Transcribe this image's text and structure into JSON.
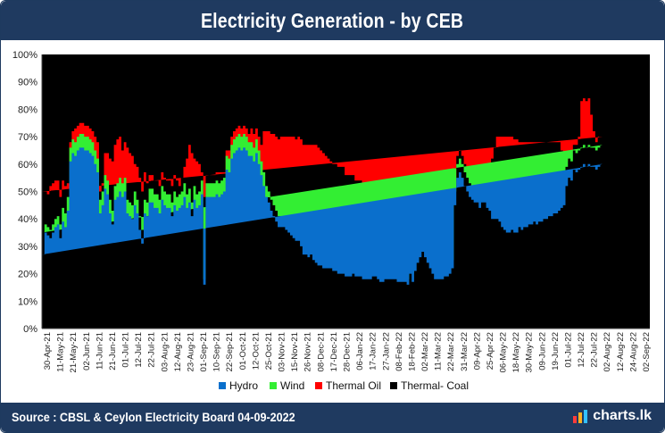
{
  "header": {
    "title": "Electricity Generation - by CEB"
  },
  "footer": {
    "source": "Source : CBSL & Ceylon Electricity Board 04-09-2022",
    "brand": "charts.lk"
  },
  "colors": {
    "hydro": "#0a6fcc",
    "wind": "#33ee33",
    "thermal_oil": "#ff0000",
    "thermal_coal": "#000000",
    "header_bg": "#1f3a60"
  },
  "chart_data": {
    "type": "area",
    "stacked": true,
    "percent": true,
    "ylim": [
      0,
      100
    ],
    "yticks": [
      "0%",
      "10%",
      "20%",
      "30%",
      "40%",
      "50%",
      "60%",
      "70%",
      "80%",
      "90%",
      "100%"
    ],
    "x_tick_labels": [
      "30-Apr-21",
      "11-May-21",
      "21-May-21",
      "02-Jun-21",
      "11-Jun-21",
      "21-Jun-21",
      "01-Jul-21",
      "12-Jul-21",
      "22-Jul-21",
      "03-Aug-21",
      "12-Aug-21",
      "23-Aug-21",
      "01-Sep-21",
      "10-Sep-21",
      "22-Sep-21",
      "01-Oct-21",
      "12-Oct-21",
      "25-Oct-21",
      "03-Nov-21",
      "15-Nov-21",
      "26-Nov-21",
      "08-Dec-21",
      "17-Dec-21",
      "28-Dec-21",
      "06-Jan-22",
      "17-Jan-22",
      "27-Jan-22",
      "08-Feb-22",
      "18-Feb-22",
      "02-Mar-22",
      "11-Mar-22",
      "22-Mar-22",
      "31-Mar-22",
      "09-Apr-22",
      "25-Apr-22",
      "06-May-22",
      "18-May-22",
      "30-May-22",
      "09-Jun-22",
      "19-Jun-22",
      "01-Jul-22",
      "12-Jul-22",
      "22-Jul-22",
      "02-Aug-22",
      "12-Aug-22",
      "24-Aug-22",
      "02-Sep-22"
    ],
    "grid": false,
    "legend": {
      "position": "bottom",
      "entries": [
        "Hydro",
        "Wind",
        "Thermal Oil",
        "Thermal- Coal"
      ]
    },
    "series_names": [
      "Hydro",
      "Wind",
      "Thermal Oil",
      "Thermal- Coal"
    ],
    "x_index": [
      0,
      2,
      4,
      6,
      8,
      10,
      12,
      14,
      16,
      18,
      20,
      22,
      24,
      26,
      28,
      30,
      32,
      34,
      36,
      38,
      40,
      42,
      44,
      46,
      48,
      50,
      52,
      54,
      56,
      58,
      60,
      62,
      64,
      66,
      68,
      70,
      72,
      74,
      76,
      78,
      80,
      82,
      84,
      86,
      88,
      90,
      92,
      94,
      96,
      98,
      100,
      102,
      104,
      106,
      108,
      110,
      112,
      114,
      116,
      118,
      120,
      122,
      124,
      126,
      128,
      130,
      132,
      134,
      136,
      138,
      140,
      142,
      144,
      146,
      148,
      150,
      152,
      154,
      156,
      158,
      160,
      162,
      164,
      166,
      168,
      170,
      172,
      174,
      176,
      178,
      180,
      182,
      184,
      186,
      188,
      190,
      192,
      194,
      196,
      198,
      200,
      202,
      204,
      206,
      208,
      210,
      212,
      214,
      216,
      218,
      220,
      222,
      224,
      226,
      228,
      230,
      232,
      234,
      236,
      238,
      240,
      242,
      244,
      246,
      248,
      250,
      252,
      254,
      256,
      258,
      260,
      262,
      264,
      266,
      268,
      270,
      272,
      274,
      276,
      278,
      280,
      282,
      284,
      286,
      288,
      290,
      292,
      294,
      296,
      298,
      300,
      302,
      304,
      306,
      308,
      310,
      312,
      314,
      316,
      318,
      320,
      322,
      324,
      326,
      328,
      330,
      332,
      334,
      336,
      338,
      340,
      342,
      344,
      346,
      348,
      350,
      352,
      354,
      356,
      358,
      360,
      362,
      364,
      366,
      368,
      370,
      372,
      374,
      376,
      378,
      380,
      382,
      384,
      386,
      388,
      390,
      392,
      394,
      396,
      398,
      400,
      402,
      404,
      406,
      408,
      410,
      412,
      414,
      416,
      418,
      420,
      422,
      424,
      426,
      428,
      430,
      432,
      434,
      436,
      438,
      440,
      442,
      444,
      446,
      448,
      450,
      452,
      454,
      456,
      458,
      460,
      462,
      464,
      466,
      468,
      470,
      472,
      474,
      476,
      478,
      480,
      482,
      484,
      486,
      488,
      490
    ],
    "hydro": [
      27,
      35,
      34,
      33,
      35,
      37,
      38,
      33,
      39,
      37,
      43,
      61,
      64,
      63,
      65,
      66,
      66,
      65,
      65,
      64,
      63,
      60,
      57,
      42,
      45,
      51,
      49,
      42,
      38,
      47,
      48,
      50,
      48,
      50,
      42,
      41,
      40,
      45,
      42,
      36,
      31,
      42,
      41,
      46,
      46,
      44,
      44,
      42,
      47,
      45,
      44,
      44,
      41,
      45,
      43,
      44,
      45,
      48,
      44,
      46,
      41,
      47,
      44,
      45,
      49,
      16,
      48,
      48,
      48,
      48,
      49,
      48,
      49,
      50,
      58,
      57,
      62,
      64,
      65,
      66,
      65,
      66,
      65,
      63,
      63,
      61,
      64,
      60,
      56,
      52,
      48,
      46,
      43,
      41,
      39,
      37,
      37,
      37,
      36,
      35,
      34,
      33,
      32,
      32,
      30,
      27,
      27,
      26,
      27,
      25,
      24,
      23,
      23,
      22,
      22,
      22,
      22,
      21,
      21,
      20,
      20,
      20,
      19,
      19,
      19,
      20,
      19,
      19,
      19,
      18,
      18,
      18,
      18,
      19,
      19,
      18,
      17,
      17,
      18,
      18,
      18,
      18,
      18,
      17,
      17,
      17,
      17,
      16,
      20,
      17,
      21,
      24,
      26,
      28,
      26,
      24,
      22,
      20,
      18,
      18,
      18,
      18,
      19,
      19,
      20,
      22,
      45,
      55,
      57,
      55,
      52,
      50,
      48,
      47,
      46,
      46,
      44,
      46,
      46,
      44,
      43,
      40,
      40,
      40,
      39,
      37,
      36,
      35,
      35,
      36,
      35,
      35,
      37,
      36,
      37,
      37,
      38,
      38,
      39,
      38,
      39,
      39,
      40,
      40,
      41,
      41,
      42,
      42,
      43,
      44,
      45,
      52,
      55,
      54,
      58,
      57,
      58,
      59,
      60,
      59,
      60,
      59,
      59,
      58,
      59,
      60
    ],
    "wind": [
      8,
      3,
      3,
      3,
      3,
      3,
      3,
      5,
      5,
      5,
      5,
      5,
      5,
      5,
      5,
      5,
      5,
      5,
      5,
      5,
      5,
      5,
      5,
      5,
      5,
      5,
      5,
      5,
      5,
      5,
      5,
      5,
      5,
      5,
      5,
      5,
      5,
      5,
      5,
      5,
      5,
      5,
      5,
      5,
      5,
      5,
      5,
      5,
      5,
      5,
      5,
      5,
      5,
      5,
      5,
      5,
      5,
      5,
      5,
      5,
      5,
      5,
      5,
      5,
      5,
      2,
      5,
      5,
      5,
      5,
      5,
      5,
      5,
      5,
      5,
      5,
      5,
      5,
      5,
      5,
      5,
      5,
      5,
      5,
      5,
      5,
      5,
      5,
      5,
      5,
      4,
      4,
      4,
      4,
      4,
      4,
      4,
      4,
      4,
      4,
      4,
      4,
      4,
      4,
      4,
      3,
      3,
      3,
      3,
      3,
      3,
      3,
      3,
      3,
      3,
      3,
      3,
      3,
      3,
      3,
      3,
      3,
      3,
      3,
      3,
      2,
      2,
      2,
      2,
      2,
      2,
      2,
      2,
      2,
      2,
      2,
      2,
      2,
      2,
      2,
      2,
      2,
      2,
      2,
      2,
      2,
      2,
      2,
      3,
      3,
      3,
      3,
      3,
      3,
      3,
      3,
      3,
      3,
      3,
      3,
      3,
      3,
      3,
      3,
      3,
      3,
      5,
      5,
      5,
      5,
      5,
      5,
      5,
      5,
      5,
      5,
      6,
      6,
      6,
      6,
      6,
      6,
      6,
      6,
      6,
      6,
      6,
      6,
      6,
      6,
      6,
      6,
      6,
      6,
      6,
      6,
      6,
      6,
      6,
      6,
      6,
      6,
      6,
      6,
      6,
      6,
      6,
      6,
      7,
      7,
      7,
      7,
      7,
      7,
      7,
      7,
      7,
      7,
      7,
      7,
      7,
      7,
      7,
      7,
      7,
      7
    ],
    "oil": [
      15,
      12,
      12,
      16,
      15,
      14,
      13,
      10,
      10,
      10,
      5,
      2,
      3,
      5,
      4,
      4,
      4,
      4,
      4,
      4,
      4,
      5,
      6,
      3,
      3,
      8,
      10,
      15,
      18,
      15,
      16,
      15,
      12,
      13,
      19,
      18,
      18,
      10,
      12,
      14,
      14,
      10,
      7,
      5,
      5,
      5,
      5,
      5,
      5,
      5,
      5,
      5,
      6,
      6,
      6,
      3,
      5,
      6,
      13,
      16,
      18,
      10,
      12,
      10,
      3,
      30,
      3,
      3,
      3,
      3,
      3,
      4,
      3,
      2,
      2,
      3,
      3,
      3,
      3,
      3,
      3,
      3,
      3,
      3,
      5,
      5,
      4,
      5,
      6,
      15,
      20,
      22,
      24,
      26,
      27,
      28,
      29,
      29,
      30,
      31,
      32,
      33,
      33,
      34,
      35,
      37,
      37,
      38,
      37,
      39,
      40,
      40,
      39,
      39,
      38,
      37,
      36,
      36,
      36,
      36,
      36,
      36,
      34,
      34,
      34,
      34,
      33,
      33,
      33,
      33,
      32,
      31,
      31,
      30,
      30,
      30,
      29,
      28,
      28,
      27,
      27,
      26,
      27,
      28,
      28,
      30,
      31,
      30,
      30,
      32,
      30,
      28,
      26,
      24,
      25,
      27,
      28,
      30,
      32,
      32,
      32,
      30,
      30,
      30,
      30,
      30,
      2,
      3,
      3,
      3,
      3,
      2,
      2,
      1,
      1,
      1,
      3,
      3,
      3,
      3,
      3,
      16,
      20,
      24,
      25,
      27,
      28,
      29,
      29,
      28,
      28,
      28,
      25,
      26,
      25,
      25,
      24,
      24,
      23,
      24,
      23,
      23,
      22,
      22,
      21,
      21,
      20,
      20,
      18,
      14,
      12,
      2,
      3,
      4,
      2,
      3,
      5,
      17,
      17,
      17,
      17,
      12,
      6,
      3,
      4,
      3
    ],
    "coal_note": "Thermal- Coal fills the remainder to 100%"
  }
}
